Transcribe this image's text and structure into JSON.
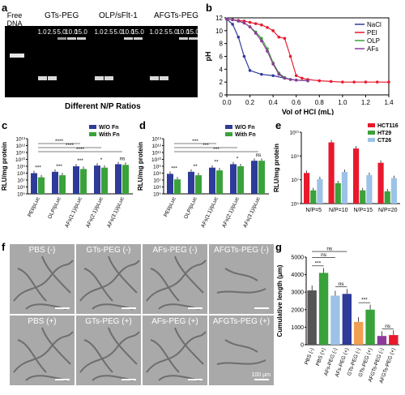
{
  "panels": {
    "a": {
      "label": "a",
      "free_dna": "Free DNA",
      "groups": [
        {
          "name": "GTs-PEG",
          "ratios": [
            "1.0",
            "2.5",
            "5.0",
            "10.0",
            "15.0"
          ]
        },
        {
          "name": "OLP/sFlt-1",
          "ratios": [
            "1.0",
            "2.5",
            "5.0",
            "10.0",
            "15.0"
          ]
        },
        {
          "name": "AFGTs-PEG",
          "ratios": [
            "1.0",
            "2.5",
            "5.0",
            "10.0",
            "15.0"
          ]
        }
      ],
      "xlabel": "Different N/P Ratios"
    },
    "b": {
      "label": "b"
    },
    "c": {
      "label": "c"
    },
    "d": {
      "label": "d"
    },
    "e": {
      "label": "e"
    },
    "f": {
      "label": "f",
      "images": [
        "PBS (-)",
        "GTs-PEG (-)",
        "AFs-PEG (-)",
        "AFGTs-PEG (-)",
        "PBS (+)",
        "GTs-PEG (+)",
        "AFs-PEG (+)",
        "AFGTs-PEG (+)"
      ],
      "scale": "100 μm"
    },
    "g": {
      "label": "g"
    }
  },
  "chart_data": [
    {
      "id": "b",
      "type": "line",
      "xlabel": "Vol of HCl (mL)",
      "ylabel": "pH",
      "xlim": [
        0,
        1.4
      ],
      "ylim": [
        0,
        12
      ],
      "xticks": [
        "0.0",
        "0.2",
        "0.4",
        "0.6",
        "0.8",
        "1.0",
        "1.2",
        "1.4"
      ],
      "yticks": [
        "0",
        "2",
        "4",
        "6",
        "8",
        "10",
        "12"
      ],
      "legend": "top-right",
      "series": [
        {
          "name": "NaCl",
          "color": "#2f3b99",
          "x": [
            0,
            0.05,
            0.1,
            0.15,
            0.2,
            0.3,
            0.4,
            0.5,
            0.6,
            0.7
          ],
          "y": [
            11.8,
            11,
            9,
            6,
            3.8,
            3.2,
            3,
            2.6,
            2.3,
            2.2
          ]
        },
        {
          "name": "PEI",
          "color": "#e8192c",
          "x": [
            0,
            0.05,
            0.1,
            0.15,
            0.2,
            0.25,
            0.3,
            0.35,
            0.4,
            0.45,
            0.5,
            0.55,
            0.6,
            0.65,
            0.7,
            0.8,
            0.9,
            1.0,
            1.1,
            1.2,
            1.3,
            1.4
          ],
          "y": [
            11.8,
            11.7,
            11.6,
            11.5,
            11.3,
            11.1,
            10.9,
            10.5,
            10,
            9,
            8.8,
            6,
            3,
            2.6,
            2.4,
            2.2,
            2.1,
            2,
            2,
            2,
            2,
            2
          ]
        },
        {
          "name": "OLP",
          "color": "#3aa23a",
          "x": [
            0,
            0.05,
            0.1,
            0.15,
            0.2,
            0.25,
            0.3,
            0.35,
            0.4,
            0.45,
            0.5,
            0.55,
            0.6,
            0.7
          ],
          "y": [
            11.8,
            11.7,
            11.5,
            11.2,
            10.6,
            9.8,
            8.8,
            7.2,
            5,
            3.4,
            2.7,
            2.4,
            2.3,
            2.2
          ]
        },
        {
          "name": "AFs",
          "color": "#8b3a9a",
          "x": [
            0,
            0.05,
            0.1,
            0.15,
            0.2,
            0.25,
            0.3,
            0.35,
            0.4,
            0.45,
            0.5,
            0.55,
            0.6,
            0.7
          ],
          "y": [
            11.8,
            11.7,
            11.5,
            11.2,
            10.6,
            9.6,
            8.4,
            6.8,
            4.8,
            3.2,
            2.6,
            2.4,
            2.3,
            2.2
          ]
        }
      ]
    },
    {
      "id": "c",
      "type": "bar",
      "ylabel": "RLU/mg protein",
      "categories": [
        "PEI/pLuc",
        "OLP/pLuc",
        "AFs(1:1)/pLuc",
        "AFs(2:1)/pLuc",
        "AFs(3:1)/pLuc"
      ],
      "yticks": [
        "10⁵",
        "10⁶",
        "10⁷",
        "10⁸",
        "10⁹",
        "10¹⁰",
        "10¹¹",
        "10¹²",
        "10¹³"
      ],
      "ylog": [
        5,
        13
      ],
      "series": [
        {
          "name": "W/O Fn",
          "color": "#2f3b99",
          "values": [
            8.0,
            8.2,
            9.0,
            9.1,
            9.3
          ]
        },
        {
          "name": "With Fn",
          "color": "#3aa23a",
          "values": [
            7.4,
            7.7,
            8.6,
            8.8,
            9.2
          ]
        }
      ],
      "sig_pair": [
        "***",
        "***",
        "***",
        "*",
        "ns"
      ],
      "sig_span": [
        "****",
        "****",
        "****"
      ]
    },
    {
      "id": "d",
      "type": "bar",
      "ylabel": "RLU/mg protein",
      "categories": [
        "PEI/pLuc",
        "OLP/pLuc",
        "AFs(1:1)/pLuc",
        "AFs(2:1)/pLuc",
        "AFs(3:1)/pLuc"
      ],
      "yticks": [
        "10⁵",
        "10⁶",
        "10⁷",
        "10⁸",
        "10⁹",
        "10¹⁰",
        "10¹¹",
        "10¹²",
        "10¹³"
      ],
      "ylog": [
        5,
        13
      ],
      "series": [
        {
          "name": "W/O Fn",
          "color": "#2f3b99",
          "values": [
            7.9,
            8.2,
            8.8,
            9.3,
            9.8
          ]
        },
        {
          "name": "With Fn",
          "color": "#3aa23a",
          "values": [
            7.1,
            7.7,
            8.4,
            9.0,
            9.8
          ]
        }
      ],
      "sig_pair": [
        "***",
        "**",
        "**",
        "*",
        "ns"
      ],
      "sig_span": [
        "***",
        "***",
        "***"
      ]
    },
    {
      "id": "e",
      "type": "bar",
      "ylabel": "RLU/mg protein",
      "categories": [
        "N/P=5",
        "N/P=10",
        "N/P=15",
        "N/P=20"
      ],
      "yticks": [
        "10⁵",
        "10⁷",
        "10⁹",
        "10¹¹"
      ],
      "ylog": [
        5,
        12
      ],
      "series": [
        {
          "name": "HCT116",
          "color": "#e8192c",
          "values": [
            8.0,
            11.0,
            10.4,
            9.0
          ]
        },
        {
          "name": "HT29",
          "color": "#3aa23a",
          "values": [
            6.3,
            7.0,
            6.3,
            6.2
          ]
        },
        {
          "name": "CT26",
          "color": "#9cc3e6",
          "values": [
            7.4,
            8.1,
            7.8,
            7.5
          ]
        }
      ]
    },
    {
      "id": "g",
      "type": "bar",
      "ylabel": "Cumulative length (μm)",
      "categories": [
        "PBS (-)",
        "PBS (+)",
        "AFs-PEG (-)",
        "AFs-PEG (+)",
        "GTs-PEG (-)",
        "GTs-PEG (+)",
        "AFGTs-PEG (-)",
        "AFGTs-PEG (+)"
      ],
      "yticks": [
        "0",
        "1000",
        "2000",
        "3000",
        "4000",
        "5000"
      ],
      "ylim": [
        0,
        5000
      ],
      "values": [
        3100,
        4100,
        2800,
        2900,
        1300,
        2000,
        500,
        550
      ],
      "colors": [
        "#555555",
        "#3aa23a",
        "#9cc3e6",
        "#2f3b99",
        "#f0a050",
        "#3aa23a",
        "#8b3a9a",
        "#e8192c"
      ],
      "sig": [
        "***",
        "ns",
        "***",
        "ns",
        "ns",
        "ns"
      ]
    }
  ]
}
